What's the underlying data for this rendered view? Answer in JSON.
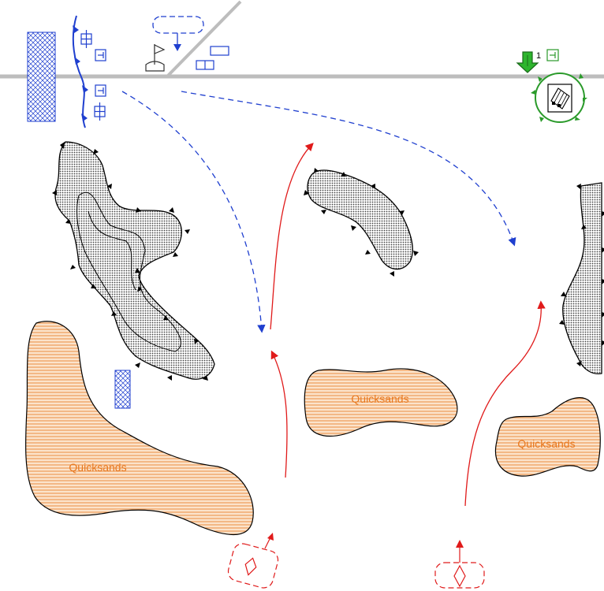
{
  "terrain": {
    "quicksand_labels": [
      "Quicksands",
      "Quicksands",
      "Quicksands"
    ]
  },
  "markers": {
    "objective_number": "1"
  },
  "colors": {
    "friendly": "#1f3fcf",
    "hostile": "#e01a1a",
    "support": "#2a9a2a",
    "quicksand_fill": "#f6c79a",
    "quicksand_hatch": "#e8781e",
    "road": "#bdbdbd"
  },
  "icons": [
    "flag-icon",
    "building-icon",
    "down-arrow-icon",
    "diamond-icon"
  ]
}
